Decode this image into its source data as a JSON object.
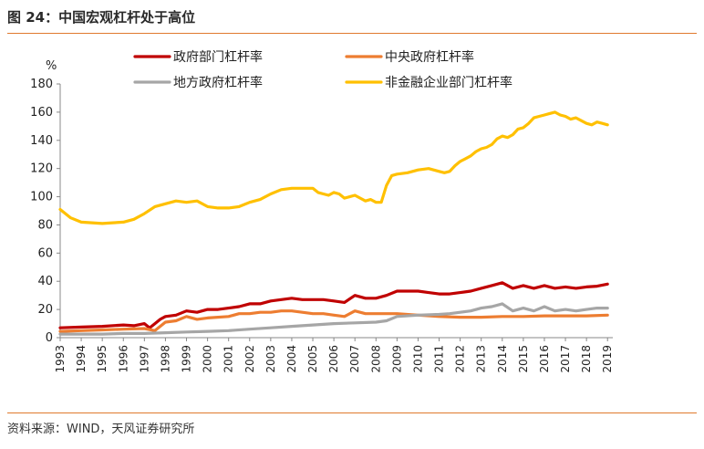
{
  "figure": {
    "title": "图 24：中国宏观杠杆处于高位",
    "source": "资料来源：WIND，天风证券研究所"
  },
  "chart_data": {
    "type": "line",
    "title": "",
    "ylabel": "%",
    "xlabel": "",
    "ylim": [
      0,
      180
    ],
    "yticks": [
      0,
      20,
      40,
      60,
      80,
      100,
      120,
      140,
      160,
      180
    ],
    "x_ticks": [
      "1993",
      "1994",
      "1995",
      "1996",
      "1997",
      "1998",
      "1999",
      "2000",
      "2001",
      "2002",
      "2003",
      "2004",
      "2005",
      "2006",
      "2007",
      "2008",
      "2009",
      "2010",
      "2011",
      "2012",
      "2013",
      "2014",
      "2015",
      "2016",
      "2017",
      "2018",
      "2019"
    ],
    "x_range": [
      1993,
      2019.25
    ],
    "grid": false,
    "legend": "top",
    "series": [
      {
        "name": "政府部门杠杆率",
        "color": "#c00000",
        "x": [
          1993,
          1994,
          1995,
          1996,
          1996.5,
          1997,
          1997.25,
          1997.5,
          1997.75,
          1998,
          1998.5,
          1999,
          1999.5,
          2000,
          2000.5,
          2001,
          2001.5,
          2002,
          2002.5,
          2003,
          2003.5,
          2004,
          2004.5,
          2005,
          2005.5,
          2006,
          2006.5,
          2007,
          2007.5,
          2008,
          2008.5,
          2009,
          2009.5,
          2010,
          2010.5,
          2011,
          2011.5,
          2012,
          2012.5,
          2013,
          2013.5,
          2014,
          2014.5,
          2015,
          2015.5,
          2016,
          2016.5,
          2017,
          2017.5,
          2018,
          2018.5,
          2019
        ],
        "y": [
          7,
          7.5,
          8,
          9,
          8.5,
          10,
          7,
          10,
          13,
          15,
          16,
          19,
          18,
          20,
          20,
          21,
          22,
          24,
          24,
          26,
          27,
          28,
          27,
          27,
          27,
          26,
          25,
          30,
          28,
          28,
          30,
          33,
          33,
          33,
          32,
          31,
          31,
          32,
          33,
          35,
          37,
          39,
          35,
          37,
          35,
          37,
          35,
          36,
          35,
          36,
          36.5,
          38
        ]
      },
      {
        "name": "中央政府杠杆率",
        "color": "#ed7d31",
        "x": [
          1993,
          1994,
          1995,
          1996,
          1997,
          1997.5,
          1998,
          1998.5,
          1999,
          1999.5,
          2000,
          2001,
          2001.5,
          2002,
          2002.5,
          2003,
          2003.5,
          2004,
          2004.5,
          2005,
          2005.5,
          2006,
          2006.5,
          2007,
          2007.5,
          2008,
          2008.5,
          2009,
          2010,
          2011,
          2012,
          2013,
          2014,
          2015,
          2016,
          2017,
          2018,
          2019
        ],
        "y": [
          4.5,
          5,
          5.5,
          6,
          6.5,
          5,
          11,
          12,
          15,
          13,
          14,
          15,
          17,
          17,
          18,
          18,
          19,
          19,
          18,
          17,
          17,
          16,
          15,
          19,
          17,
          17,
          17,
          17,
          16,
          15,
          14.5,
          14.5,
          15,
          15,
          15.5,
          15.5,
          15.5,
          16
        ]
      },
      {
        "name": "地方政府杠杆率",
        "color": "#a6a6a6",
        "x": [
          1993,
          1994,
          1995,
          1996,
          1997,
          1998,
          1999,
          2000,
          2001,
          2002,
          2003,
          2004,
          2005,
          2006,
          2007,
          2008,
          2008.5,
          2009,
          2010,
          2011,
          2011.5,
          2012,
          2012.5,
          2013,
          2013.5,
          2014,
          2014.5,
          2015,
          2015.5,
          2016,
          2016.5,
          2017,
          2017.5,
          2018,
          2018.5,
          2019
        ],
        "y": [
          2.5,
          2.5,
          2.5,
          3,
          3,
          3.5,
          4,
          4.5,
          5,
          6,
          7,
          8,
          9,
          10,
          10.5,
          11,
          12,
          15,
          16,
          16.5,
          17,
          18,
          19,
          21,
          22,
          24,
          19,
          21,
          19,
          22,
          19,
          20,
          19,
          20,
          21,
          21
        ]
      },
      {
        "name": "非金融企业部门杠杆率",
        "color": "#ffc000",
        "x": [
          1993,
          1993.5,
          1994,
          1994.5,
          1995,
          1995.5,
          1996,
          1996.5,
          1997,
          1997.5,
          1998,
          1998.5,
          1999,
          1999.5,
          2000,
          2000.5,
          2001,
          2001.5,
          2002,
          2002.5,
          2003,
          2003.5,
          2004,
          2004.5,
          2005,
          2005.25,
          2005.5,
          2005.75,
          2006,
          2006.25,
          2006.5,
          2006.75,
          2007,
          2007.25,
          2007.5,
          2007.75,
          2008,
          2008.25,
          2008.5,
          2008.75,
          2009,
          2009.5,
          2010,
          2010.5,
          2011,
          2011.25,
          2011.5,
          2011.75,
          2012,
          2012.25,
          2012.5,
          2012.75,
          2013,
          2013.25,
          2013.5,
          2013.75,
          2014,
          2014.25,
          2014.5,
          2014.75,
          2015,
          2015.25,
          2015.5,
          2015.75,
          2016,
          2016.25,
          2016.5,
          2016.75,
          2017,
          2017.25,
          2017.5,
          2017.75,
          2018,
          2018.25,
          2018.5,
          2018.75,
          2019
        ],
        "y": [
          91,
          85,
          82,
          81.5,
          81,
          81.5,
          82,
          84,
          88,
          93,
          95,
          97,
          96,
          97,
          93,
          92,
          92,
          93,
          96,
          98,
          102,
          105,
          106,
          106,
          106,
          103,
          102,
          101,
          103,
          102,
          99,
          100,
          101,
          99,
          97,
          98,
          96,
          96,
          108,
          115,
          116,
          117,
          119,
          120,
          118,
          117,
          118,
          122,
          125,
          127,
          129,
          132,
          134,
          135,
          137,
          141,
          143,
          142,
          144,
          148,
          149,
          152,
          156,
          157,
          158,
          159,
          160,
          158,
          157,
          155,
          156,
          154,
          152,
          151,
          153,
          152,
          151
        ]
      }
    ]
  }
}
